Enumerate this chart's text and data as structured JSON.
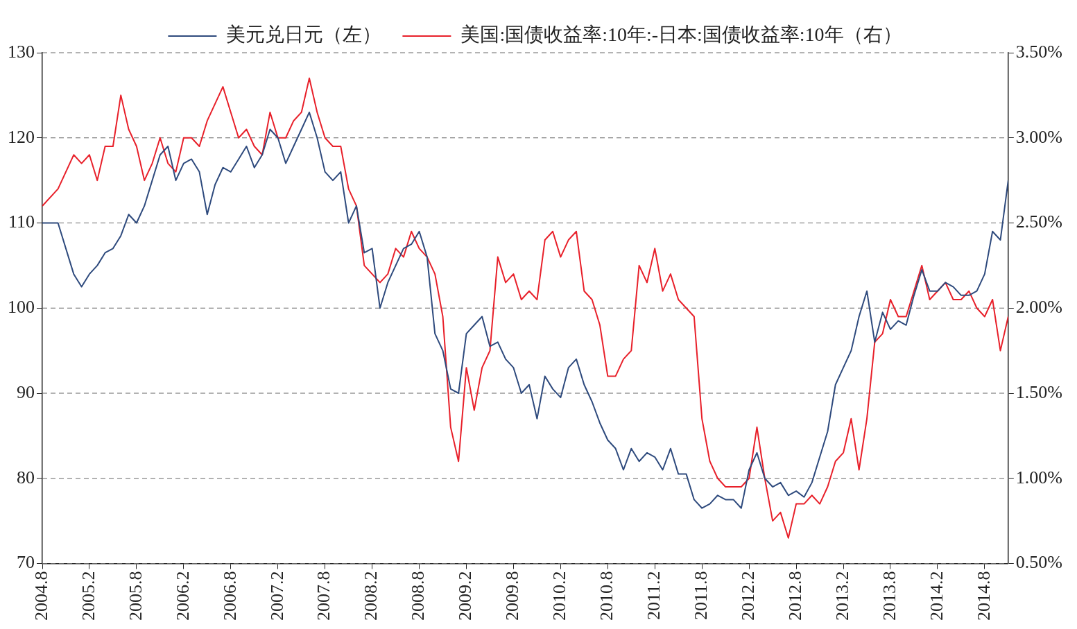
{
  "chart_data": {
    "type": "line",
    "x": [
      "2004-08",
      "2004-10",
      "2004-12",
      "2005-01",
      "2005-02",
      "2005-03",
      "2005-04",
      "2005-05",
      "2005-06",
      "2005-07",
      "2005-08",
      "2005-09",
      "2005-10",
      "2005-11",
      "2005-12",
      "2006-01",
      "2006-02",
      "2006-03",
      "2006-04",
      "2006-05",
      "2006-06",
      "2006-07",
      "2006-08",
      "2006-09",
      "2006-10",
      "2006-11",
      "2006-12",
      "2007-01",
      "2007-02",
      "2007-03",
      "2007-04",
      "2007-05",
      "2007-06",
      "2007-07",
      "2007-08",
      "2007-09",
      "2007-10",
      "2007-11",
      "2007-12",
      "2008-01",
      "2008-02",
      "2008-03",
      "2008-04",
      "2008-05",
      "2008-06",
      "2008-07",
      "2008-08",
      "2008-09",
      "2008-10",
      "2008-11",
      "2008-12",
      "2009-01",
      "2009-02",
      "2009-03",
      "2009-04",
      "2009-05",
      "2009-06",
      "2009-07",
      "2009-08",
      "2009-09",
      "2009-10",
      "2009-11",
      "2009-12",
      "2010-01",
      "2010-02",
      "2010-03",
      "2010-04",
      "2010-05",
      "2010-06",
      "2010-07",
      "2010-08",
      "2010-09",
      "2010-10",
      "2010-11",
      "2010-12",
      "2011-01",
      "2011-02",
      "2011-03",
      "2011-04",
      "2011-05",
      "2011-06",
      "2011-07",
      "2011-08",
      "2011-09",
      "2011-10",
      "2011-11",
      "2011-12",
      "2012-01",
      "2012-02",
      "2012-03",
      "2012-04",
      "2012-05",
      "2012-06",
      "2012-07",
      "2012-08",
      "2012-09",
      "2012-10",
      "2012-11",
      "2012-12",
      "2013-01",
      "2013-02",
      "2013-03",
      "2013-04",
      "2013-05",
      "2013-06",
      "2013-07",
      "2013-08",
      "2013-09",
      "2013-10",
      "2013-11",
      "2013-12",
      "2014-01",
      "2014-02",
      "2014-03",
      "2014-04",
      "2014-05",
      "2014-06",
      "2014-07",
      "2014-08",
      "2014-09",
      "2014-10",
      "2014-11"
    ],
    "series": [
      {
        "name": "美元兑日元（左）",
        "color": "#2e4a7d",
        "values": [
          110,
          110,
          104,
          102.5,
          104,
          105,
          106.5,
          107,
          108.5,
          111,
          110,
          112,
          115,
          118,
          119,
          115,
          117,
          117.5,
          116,
          111,
          114.5,
          116.5,
          116,
          117.5,
          119,
          116.5,
          118,
          121,
          120,
          117,
          119,
          121,
          123,
          120,
          116,
          115,
          116,
          110,
          112,
          106.5,
          107,
          100,
          103,
          105,
          107,
          107.5,
          109,
          106,
          97,
          95,
          90.5,
          90,
          97,
          98,
          99,
          95.5,
          96,
          94,
          93,
          90,
          91,
          87,
          92,
          90.5,
          89.5,
          93,
          94,
          91,
          89,
          86.5,
          84.5,
          83.5,
          81,
          83.5,
          82,
          83,
          82.5,
          81,
          83.5,
          80.5,
          80.5,
          77.5,
          76.5,
          77,
          78,
          77.5,
          77.5,
          76.5,
          81,
          83,
          80,
          79,
          79.5,
          78,
          78.5,
          77.8,
          79.5,
          82.5,
          85.5,
          91,
          93,
          95,
          99,
          102,
          96,
          99.5,
          97.5,
          98.5,
          98,
          101.5,
          104.5,
          102,
          102,
          103,
          102.5,
          101.5,
          101.5,
          102,
          104,
          109,
          108,
          115
        ]
      },
      {
        "name": "美国:国债收益率:10年:-日本:国债收益率:10年（右）",
        "color": "#e8202a",
        "axis": "y2",
        "values": [
          2.6,
          2.7,
          2.9,
          2.85,
          2.9,
          2.75,
          2.95,
          2.95,
          3.25,
          3.05,
          2.95,
          2.75,
          2.85,
          3.0,
          2.85,
          2.8,
          3.0,
          3.0,
          2.95,
          3.1,
          3.2,
          3.3,
          3.15,
          3.0,
          3.05,
          2.95,
          2.9,
          3.15,
          3.0,
          3.0,
          3.1,
          3.15,
          3.35,
          3.15,
          3.0,
          2.95,
          2.95,
          2.7,
          2.6,
          2.25,
          2.2,
          2.15,
          2.2,
          2.35,
          2.3,
          2.45,
          2.35,
          2.3,
          2.2,
          1.95,
          1.3,
          1.1,
          1.65,
          1.4,
          1.65,
          1.75,
          2.3,
          2.15,
          2.2,
          2.05,
          2.1,
          2.05,
          2.4,
          2.45,
          2.3,
          2.4,
          2.45,
          2.1,
          2.05,
          1.9,
          1.6,
          1.6,
          1.7,
          1.75,
          2.25,
          2.15,
          2.35,
          2.1,
          2.2,
          2.05,
          2.0,
          1.95,
          1.35,
          1.1,
          1.0,
          0.95,
          0.95,
          0.95,
          1.0,
          1.3,
          1.0,
          0.75,
          0.8,
          0.65,
          0.85,
          0.85,
          0.9,
          0.85,
          0.95,
          1.1,
          1.15,
          1.35,
          1.05,
          1.35,
          1.8,
          1.85,
          2.05,
          1.95,
          1.95,
          2.1,
          2.25,
          2.05,
          2.1,
          2.15,
          2.05,
          2.05,
          2.1,
          2.0,
          1.95,
          2.05,
          1.75,
          1.95
        ]
      }
    ],
    "xlim": [
      "2004-08",
      "2014-11"
    ],
    "xticks": [
      {
        "value": "2004-08",
        "label": "2004.8"
      },
      {
        "value": "2005-02",
        "label": "2005.2"
      },
      {
        "value": "2005-08",
        "label": "2005.8"
      },
      {
        "value": "2006-02",
        "label": "2006.2"
      },
      {
        "value": "2006-08",
        "label": "2006.8"
      },
      {
        "value": "2007-02",
        "label": "2007.2"
      },
      {
        "value": "2007-08",
        "label": "2007.8"
      },
      {
        "value": "2008-02",
        "label": "2008.2"
      },
      {
        "value": "2008-08",
        "label": "2008.8"
      },
      {
        "value": "2009-02",
        "label": "2009.2"
      },
      {
        "value": "2009-08",
        "label": "2009.8"
      },
      {
        "value": "2010-02",
        "label": "2010.2"
      },
      {
        "value": "2010-08",
        "label": "2010.8"
      },
      {
        "value": "2011-02",
        "label": "2011.2"
      },
      {
        "value": "2011-08",
        "label": "2011.8"
      },
      {
        "value": "2012-02",
        "label": "2012.2"
      },
      {
        "value": "2012-08",
        "label": "2012.8"
      },
      {
        "value": "2013-02",
        "label": "2013.2"
      },
      {
        "value": "2013-08",
        "label": "2013.8"
      },
      {
        "value": "2014-02",
        "label": "2014.2"
      },
      {
        "value": "2014-08",
        "label": "2014.8"
      }
    ],
    "ylim": [
      70,
      130
    ],
    "yticks": [
      70,
      80,
      90,
      100,
      110,
      120,
      130
    ],
    "y2lim": [
      0.5,
      3.5
    ],
    "y2ticks": [
      {
        "value": 0.5,
        "label": "0.50%"
      },
      {
        "value": 1.0,
        "label": "1.00%"
      },
      {
        "value": 1.5,
        "label": "1.50%"
      },
      {
        "value": 2.0,
        "label": "2.00%"
      },
      {
        "value": 2.5,
        "label": "2.50%"
      },
      {
        "value": 3.0,
        "label": "3.00%"
      },
      {
        "value": 3.5,
        "label": "3.50%"
      }
    ],
    "grid": "y",
    "legend": "top",
    "marker": "none",
    "line_style": "solid"
  }
}
